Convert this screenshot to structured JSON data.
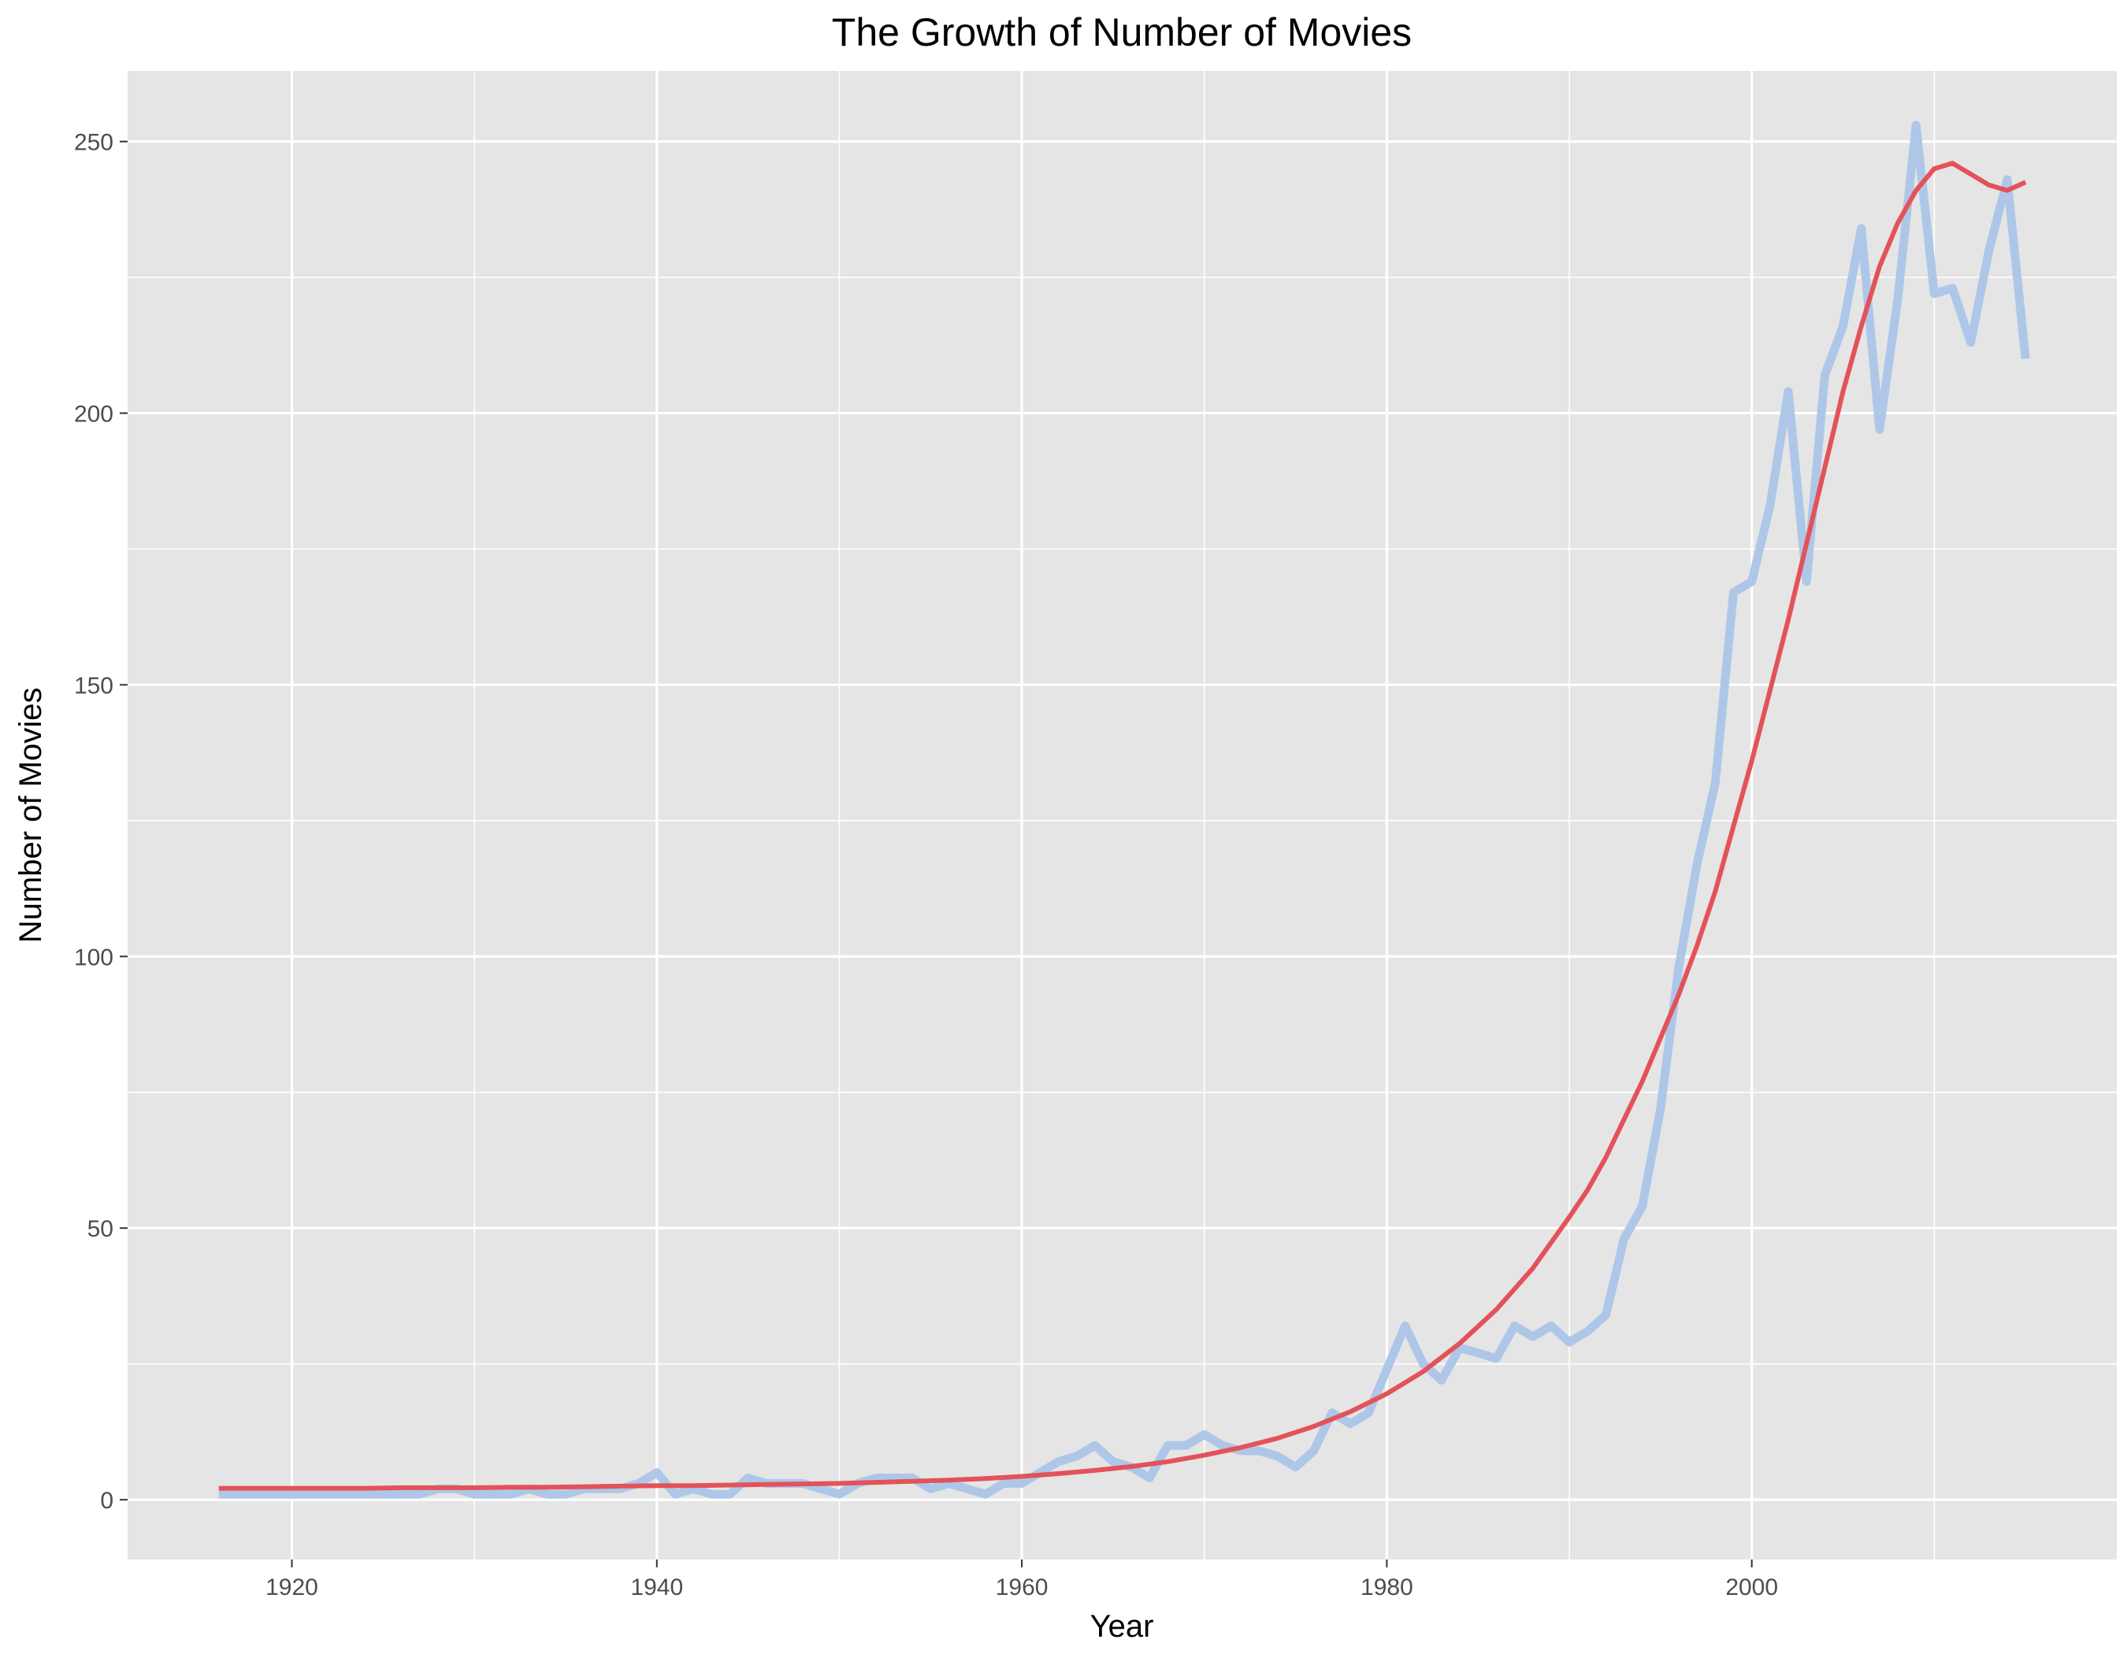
{
  "chart_data": {
    "type": "line",
    "title": "The Growth of Number of Movies",
    "xlabel": "Year",
    "ylabel": "Number of Movies",
    "xlim": [
      1911,
      2020
    ],
    "ylim": [
      -11,
      263
    ],
    "x_ticks": [
      "1920",
      "1940",
      "1960",
      "1980",
      "2000"
    ],
    "y_ticks": [
      "0",
      "50",
      "100",
      "150",
      "200",
      "250"
    ],
    "grid": true,
    "legend": "none",
    "colors": {
      "panel": "#e5e5e5",
      "grid": "#ffffff",
      "series1": "#aec7e8",
      "series2": "#e45259"
    },
    "series": [
      {
        "x": [
          1916,
          1917,
          1918,
          1919,
          1920,
          1921,
          1922,
          1923,
          1924,
          1925,
          1926,
          1927,
          1928,
          1929,
          1930,
          1931,
          1932,
          1933,
          1934,
          1935,
          1936,
          1937,
          1938,
          1939,
          1940,
          1941,
          1942,
          1943,
          1944,
          1945,
          1946,
          1947,
          1948,
          1949,
          1950,
          1951,
          1952,
          1953,
          1954,
          1955,
          1956,
          1957,
          1958,
          1959,
          1960,
          1961,
          1962,
          1963,
          1964,
          1965,
          1966,
          1967,
          1968,
          1969,
          1970,
          1971,
          1972,
          1973,
          1974,
          1975,
          1976,
          1977,
          1978,
          1979,
          1980,
          1981,
          1982,
          1983,
          1984,
          1985,
          1986,
          1987,
          1988,
          1989,
          1990,
          1991,
          1992,
          1993,
          1994,
          1995,
          1996,
          1997,
          1998,
          1999,
          2000,
          2001,
          2002,
          2003,
          2004,
          2005,
          2006,
          2007,
          2008,
          2009,
          2010,
          2011,
          2012,
          2013,
          2014,
          2015
        ],
        "y": [
          1,
          1,
          1,
          1,
          1,
          1,
          1,
          1,
          1,
          1,
          1,
          1,
          2,
          2,
          1,
          1,
          1,
          2,
          1,
          1,
          2,
          2,
          2,
          3,
          5,
          1,
          2,
          1,
          1,
          4,
          3,
          3,
          3,
          2,
          1,
          3,
          4,
          4,
          4,
          2,
          3,
          2,
          1,
          3,
          3,
          5,
          7,
          8,
          10,
          7,
          6,
          4,
          10,
          10,
          12,
          10,
          9,
          9,
          8,
          6,
          9,
          16,
          14,
          16,
          24,
          32,
          25,
          22,
          28,
          27,
          26,
          32,
          30,
          32,
          29,
          31,
          34,
          48,
          54,
          72,
          98,
          117,
          132,
          167,
          169,
          183,
          204,
          169,
          207,
          216,
          234,
          197,
          221,
          253,
          222,
          223,
          213,
          230,
          243,
          210
        ]
      },
      {
        "x": [
          1916,
          1918,
          1920,
          1922,
          1924,
          1926,
          1928,
          1930,
          1932,
          1934,
          1936,
          1938,
          1940,
          1942,
          1944,
          1946,
          1948,
          1950,
          1952,
          1954,
          1956,
          1958,
          1960,
          1962,
          1964,
          1966,
          1968,
          1970,
          1972,
          1974,
          1976,
          1978,
          1980,
          1982,
          1984,
          1986,
          1988,
          1990,
          1991,
          1992,
          1993,
          1994,
          1995,
          1996,
          1997,
          1998,
          1999,
          2000,
          2001,
          2002,
          2003,
          2004,
          2005,
          2006,
          2007,
          2008,
          2009,
          2010,
          2011,
          2012,
          2013,
          2014,
          2015
        ],
        "y": [
          2.1,
          2.1,
          2.1,
          2.1,
          2.1,
          2.2,
          2.2,
          2.2,
          2.3,
          2.3,
          2.4,
          2.5,
          2.6,
          2.6,
          2.7,
          2.8,
          2.9,
          3.0,
          3.2,
          3.4,
          3.6,
          3.9,
          4.3,
          4.8,
          5.4,
          6.1,
          7.0,
          8.2,
          9.6,
          11.3,
          13.5,
          16.2,
          19.5,
          23.6,
          28.8,
          35.0,
          42.6,
          52.0,
          57.0,
          63.0,
          70.0,
          77.0,
          85.0,
          93.0,
          102.0,
          112.0,
          124.0,
          136.0,
          149.0,
          162.0,
          176.0,
          190.0,
          204.0,
          216.0,
          227.0,
          235.0,
          241.0,
          245.0,
          246.0,
          244.0,
          242.0,
          241.0,
          242.5
        ]
      }
    ]
  }
}
